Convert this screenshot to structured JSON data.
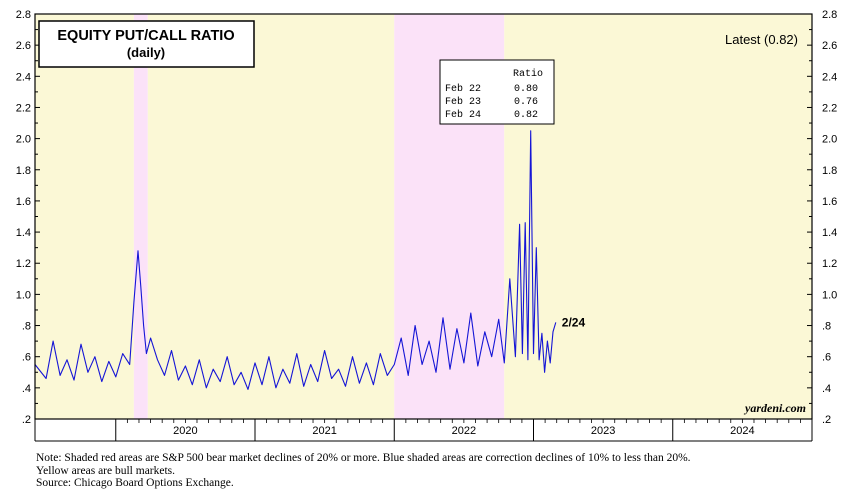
{
  "chart_data": {
    "type": "line",
    "title": "EQUITY PUT/CALL RATIO",
    "subtitle": "(daily)",
    "latest_label": "Latest (0.82)",
    "end_label": "2/24",
    "watermark": "yardeni.com",
    "x_range": [
      2019.42,
      2025.0
    ],
    "ylim": [
      0.2,
      2.8
    ],
    "y_ticks": [
      {
        "v": 0.2,
        "label": ".2"
      },
      {
        "v": 0.4,
        "label": ".4"
      },
      {
        "v": 0.6,
        "label": ".6"
      },
      {
        "v": 0.8,
        "label": ".8"
      },
      {
        "v": 1.0,
        "label": "1.0"
      },
      {
        "v": 1.2,
        "label": "1.2"
      },
      {
        "v": 1.4,
        "label": "1.4"
      },
      {
        "v": 1.6,
        "label": "1.6"
      },
      {
        "v": 1.8,
        "label": "1.8"
      },
      {
        "v": 2.0,
        "label": "2.0"
      },
      {
        "v": 2.2,
        "label": "2.2"
      },
      {
        "v": 2.4,
        "label": "2.4"
      },
      {
        "v": 2.6,
        "label": "2.6"
      },
      {
        "v": 2.8,
        "label": "2.8"
      }
    ],
    "years": [
      "2020",
      "2021",
      "2022",
      "2023",
      "2024"
    ],
    "shaded_regions": [
      {
        "from": 2019.42,
        "to": 2020.13,
        "kind": "bull"
      },
      {
        "from": 2020.13,
        "to": 2020.23,
        "kind": "bear"
      },
      {
        "from": 2020.23,
        "to": 2022.0,
        "kind": "bull"
      },
      {
        "from": 2022.0,
        "to": 2022.79,
        "kind": "bear"
      },
      {
        "from": 2022.79,
        "to": 2025.0,
        "kind": "bull"
      }
    ],
    "table": {
      "header": "Ratio",
      "rows": [
        {
          "date": "Feb 22",
          "value": "0.80"
        },
        {
          "date": "Feb 23",
          "value": "0.76"
        },
        {
          "date": "Feb 24",
          "value": "0.82"
        }
      ]
    },
    "series": [
      {
        "name": "Equity Put/Call Ratio",
        "x": [
          2019.42,
          2019.5,
          2019.55,
          2019.6,
          2019.65,
          2019.7,
          2019.75,
          2019.8,
          2019.85,
          2019.9,
          2019.95,
          2020.0,
          2020.05,
          2020.1,
          2020.13,
          2020.16,
          2020.18,
          2020.2,
          2020.22,
          2020.25,
          2020.3,
          2020.35,
          2020.4,
          2020.45,
          2020.5,
          2020.55,
          2020.6,
          2020.65,
          2020.7,
          2020.75,
          2020.8,
          2020.85,
          2020.9,
          2020.95,
          2021.0,
          2021.05,
          2021.1,
          2021.15,
          2021.2,
          2021.25,
          2021.3,
          2021.35,
          2021.4,
          2021.45,
          2021.5,
          2021.55,
          2021.6,
          2021.65,
          2021.7,
          2021.75,
          2021.8,
          2021.85,
          2021.9,
          2021.95,
          2022.0,
          2022.05,
          2022.1,
          2022.15,
          2022.2,
          2022.25,
          2022.3,
          2022.35,
          2022.4,
          2022.45,
          2022.5,
          2022.55,
          2022.6,
          2022.65,
          2022.7,
          2022.75,
          2022.79,
          2022.83,
          2022.87,
          2022.9,
          2022.92,
          2022.94,
          2022.96,
          2022.98,
          2023.0,
          2023.02,
          2023.04,
          2023.06,
          2023.08,
          2023.1,
          2023.12,
          2023.14,
          2023.16
        ],
        "values": [
          0.55,
          0.46,
          0.7,
          0.48,
          0.58,
          0.45,
          0.68,
          0.5,
          0.6,
          0.44,
          0.57,
          0.47,
          0.62,
          0.55,
          0.95,
          1.28,
          1.05,
          0.8,
          0.62,
          0.72,
          0.58,
          0.48,
          0.64,
          0.45,
          0.54,
          0.42,
          0.58,
          0.4,
          0.52,
          0.44,
          0.6,
          0.42,
          0.5,
          0.39,
          0.56,
          0.42,
          0.6,
          0.4,
          0.52,
          0.43,
          0.62,
          0.41,
          0.55,
          0.44,
          0.64,
          0.46,
          0.52,
          0.41,
          0.6,
          0.43,
          0.56,
          0.42,
          0.62,
          0.48,
          0.55,
          0.72,
          0.48,
          0.8,
          0.55,
          0.7,
          0.5,
          0.85,
          0.52,
          0.78,
          0.56,
          0.88,
          0.54,
          0.76,
          0.6,
          0.84,
          0.56,
          1.1,
          0.6,
          1.45,
          0.62,
          1.46,
          0.58,
          2.05,
          0.62,
          1.3,
          0.58,
          0.75,
          0.5,
          0.7,
          0.56,
          0.76,
          0.82
        ]
      }
    ]
  },
  "notes": {
    "line1": "Note: Shaded red areas are S&P 500 bear market declines of 20% or more.  Blue shaded areas are correction declines of 10% to less than 20%.",
    "line2": "Yellow areas are bull markets.",
    "line3": "Source: Chicago Board Options Exchange."
  },
  "colors": {
    "bull": "#fbf8d6",
    "bear": "#fbe2f8",
    "line": "#1515d6",
    "frame": "#000000"
  }
}
